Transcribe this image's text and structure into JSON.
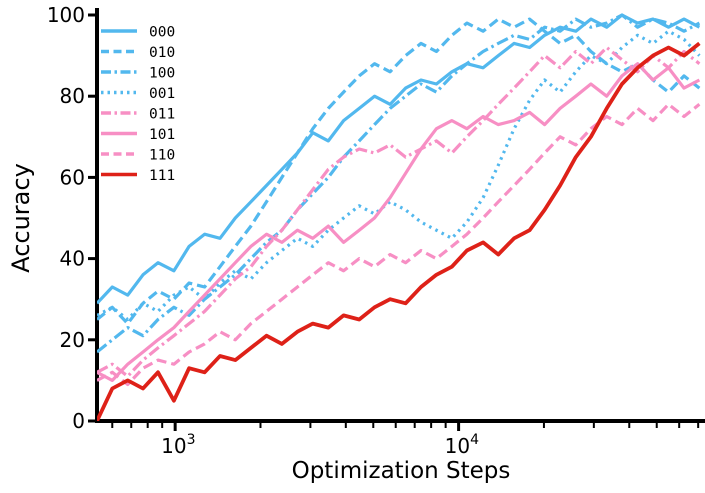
{
  "chart_data": {
    "type": "line",
    "title": "",
    "xlabel": "Optimization Steps",
    "ylabel": "Accuracy",
    "xscale": "log",
    "xlim": [
      530,
      74000
    ],
    "ylim": [
      0,
      100
    ],
    "grid": false,
    "legend_position": "upper left",
    "yticks": [
      0,
      20,
      40,
      60,
      80,
      100
    ],
    "xticks_major": [
      {
        "value": 1000,
        "base": "10",
        "exp": "3"
      },
      {
        "value": 10000,
        "base": "10",
        "exp": "4"
      }
    ],
    "xticks_minor": [
      600,
      700,
      800,
      900,
      2000,
      3000,
      4000,
      5000,
      6000,
      7000,
      8000,
      9000,
      20000,
      30000,
      40000,
      50000,
      60000,
      70000
    ],
    "colors": {
      "blue": "#52B8EE",
      "pink": "#F78FC4",
      "red": "#DE2118"
    },
    "x": [
      530,
      600,
      680,
      770,
      870,
      990,
      1120,
      1270,
      1440,
      1630,
      1850,
      2100,
      2380,
      2700,
      3060,
      3470,
      3930,
      4460,
      5050,
      5730,
      6500,
      7370,
      8350,
      9470,
      10700,
      12200,
      13800,
      15700,
      17800,
      20100,
      22800,
      25900,
      29300,
      33300,
      37700,
      42800,
      48500,
      55000,
      62400,
      70700
    ],
    "series": [
      {
        "name": "000",
        "color": "#52B8EE",
        "style": "solid",
        "values": [
          29,
          33,
          31,
          36,
          39,
          37,
          43,
          46,
          45,
          50,
          54,
          58,
          62,
          66,
          71,
          69,
          74,
          77,
          80,
          78,
          82,
          84,
          83,
          86,
          88,
          87,
          90,
          93,
          92,
          95,
          97,
          96,
          99,
          97,
          100,
          98,
          99,
          97,
          99,
          97
        ]
      },
      {
        "name": "010",
        "color": "#52B8EE",
        "style": "dashed",
        "values": [
          25,
          28,
          24,
          29,
          32,
          30,
          34,
          33,
          38,
          43,
          48,
          54,
          60,
          66,
          72,
          77,
          81,
          85,
          88,
          86,
          90,
          93,
          91,
          95,
          98,
          96,
          99,
          97,
          99,
          96,
          93,
          95,
          91,
          88,
          86,
          88,
          84,
          81,
          85,
          82
        ]
      },
      {
        "name": "100",
        "color": "#52B8EE",
        "style": "dashdot",
        "values": [
          17,
          20,
          23,
          21,
          25,
          28,
          26,
          30,
          33,
          36,
          40,
          44,
          47,
          52,
          56,
          60,
          65,
          69,
          73,
          77,
          80,
          83,
          81,
          85,
          88,
          91,
          93,
          95,
          94,
          97,
          96,
          99,
          97,
          98,
          100,
          97,
          99,
          98,
          96,
          98
        ]
      },
      {
        "name": "001",
        "color": "#52B8EE",
        "style": "dotted",
        "values": [
          26,
          28,
          25,
          29,
          27,
          31,
          33,
          30,
          34,
          37,
          35,
          39,
          42,
          45,
          43,
          47,
          50,
          53,
          51,
          54,
          52,
          49,
          47,
          45,
          49,
          55,
          63,
          72,
          79,
          84,
          81,
          86,
          90,
          88,
          92,
          95,
          93,
          96,
          94,
          90
        ]
      },
      {
        "name": "011",
        "color": "#F78FC4",
        "style": "dashdot",
        "values": [
          12,
          14,
          11,
          15,
          18,
          21,
          24,
          27,
          31,
          35,
          38,
          43,
          47,
          52,
          57,
          62,
          65,
          67,
          66,
          68,
          65,
          67,
          69,
          66,
          70,
          74,
          78,
          82,
          86,
          90,
          87,
          91,
          88,
          92,
          89,
          86,
          90,
          87,
          91,
          88
        ]
      },
      {
        "name": "101",
        "color": "#F78FC4",
        "style": "solid",
        "values": [
          12,
          10,
          14,
          17,
          20,
          23,
          27,
          31,
          35,
          39,
          43,
          46,
          44,
          47,
          45,
          48,
          44,
          47,
          50,
          55,
          61,
          67,
          72,
          74,
          72,
          75,
          73,
          74,
          76,
          73,
          77,
          80,
          83,
          80,
          85,
          88,
          84,
          87,
          82,
          84
        ]
      },
      {
        "name": "110",
        "color": "#F78FC4",
        "style": "dashed",
        "values": [
          10,
          12,
          9,
          13,
          15,
          14,
          17,
          19,
          22,
          20,
          24,
          27,
          30,
          33,
          36,
          39,
          37,
          40,
          38,
          41,
          39,
          42,
          40,
          43,
          46,
          50,
          54,
          58,
          62,
          66,
          70,
          68,
          72,
          75,
          73,
          77,
          74,
          78,
          75,
          78
        ]
      },
      {
        "name": "111",
        "color": "#DE2118",
        "style": "solid",
        "values": [
          0,
          8,
          10,
          8,
          12,
          5,
          13,
          12,
          16,
          15,
          18,
          21,
          19,
          22,
          24,
          23,
          26,
          25,
          28,
          30,
          29,
          33,
          36,
          38,
          42,
          44,
          41,
          45,
          47,
          52,
          58,
          65,
          70,
          77,
          83,
          87,
          90,
          92,
          90,
          93
        ]
      }
    ]
  }
}
